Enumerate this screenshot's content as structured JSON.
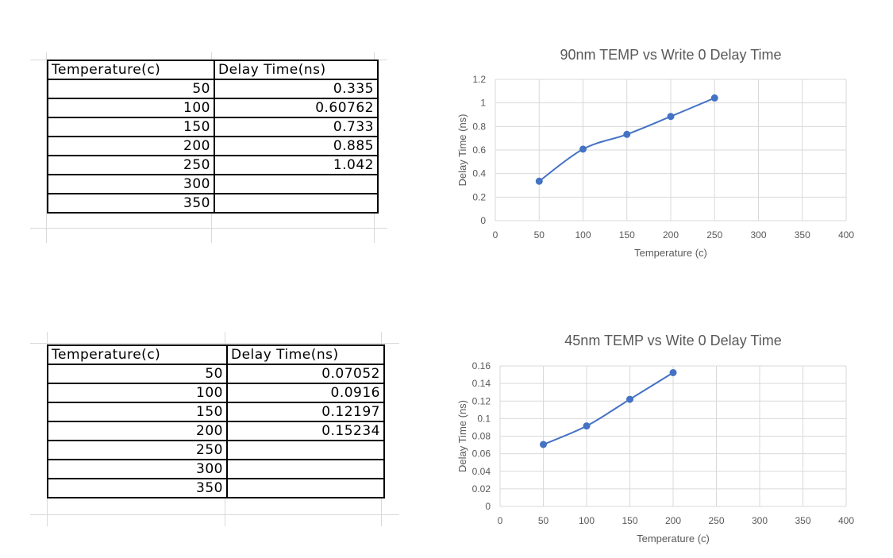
{
  "tables": [
    {
      "headers": [
        "Temperature(c)",
        "Delay Time(ns)"
      ],
      "rows": [
        [
          "50",
          "0.335"
        ],
        [
          "100",
          "0.60762"
        ],
        [
          "150",
          "0.733"
        ],
        [
          "200",
          "0.885"
        ],
        [
          "250",
          "1.042"
        ],
        [
          "300",
          ""
        ],
        [
          "350",
          ""
        ]
      ]
    },
    {
      "headers": [
        "Temperature(c)",
        "Delay Time(ns)"
      ],
      "rows": [
        [
          "50",
          "0.07052"
        ],
        [
          "100",
          "0.0916"
        ],
        [
          "150",
          "0.12197"
        ],
        [
          "200",
          "0.15234"
        ],
        [
          "250",
          ""
        ],
        [
          "300",
          ""
        ],
        [
          "350",
          ""
        ]
      ]
    }
  ],
  "chart_data": [
    {
      "type": "scatter",
      "title": "90nm TEMP vs  Write 0 Delay Time",
      "xlabel": "Temperature (c)",
      "ylabel": "Delay Time (ns)",
      "xlim": [
        0,
        400
      ],
      "ylim": [
        0,
        1.2
      ],
      "xticks": [
        "0",
        "50",
        "100",
        "150",
        "200",
        "250",
        "300",
        "350",
        "400"
      ],
      "yticks": [
        "0",
        "0.2",
        "0.4",
        "0.6",
        "0.8",
        "1",
        "1.2"
      ],
      "grid": true,
      "line": "smooth",
      "series_color": "#4472c4",
      "x": [
        50,
        100,
        150,
        200,
        250
      ],
      "y": [
        0.335,
        0.60762,
        0.733,
        0.885,
        1.042
      ]
    },
    {
      "type": "scatter",
      "title": "45nm TEMP vs  Wite 0 Delay Time",
      "xlabel": "Temperature (c)",
      "ylabel": "Delay Time (ns)",
      "xlim": [
        0,
        400
      ],
      "ylim": [
        0,
        0.16
      ],
      "xticks": [
        "0",
        "50",
        "100",
        "150",
        "200",
        "250",
        "300",
        "350",
        "400"
      ],
      "yticks": [
        "0",
        "0.02",
        "0.04",
        "0.06",
        "0.08",
        "0.1",
        "0.12",
        "0.14",
        "0.16"
      ],
      "grid": true,
      "line": "smooth",
      "series_color": "#4472c4",
      "x": [
        50,
        100,
        150,
        200
      ],
      "y": [
        0.07052,
        0.0916,
        0.12197,
        0.15234
      ]
    }
  ]
}
